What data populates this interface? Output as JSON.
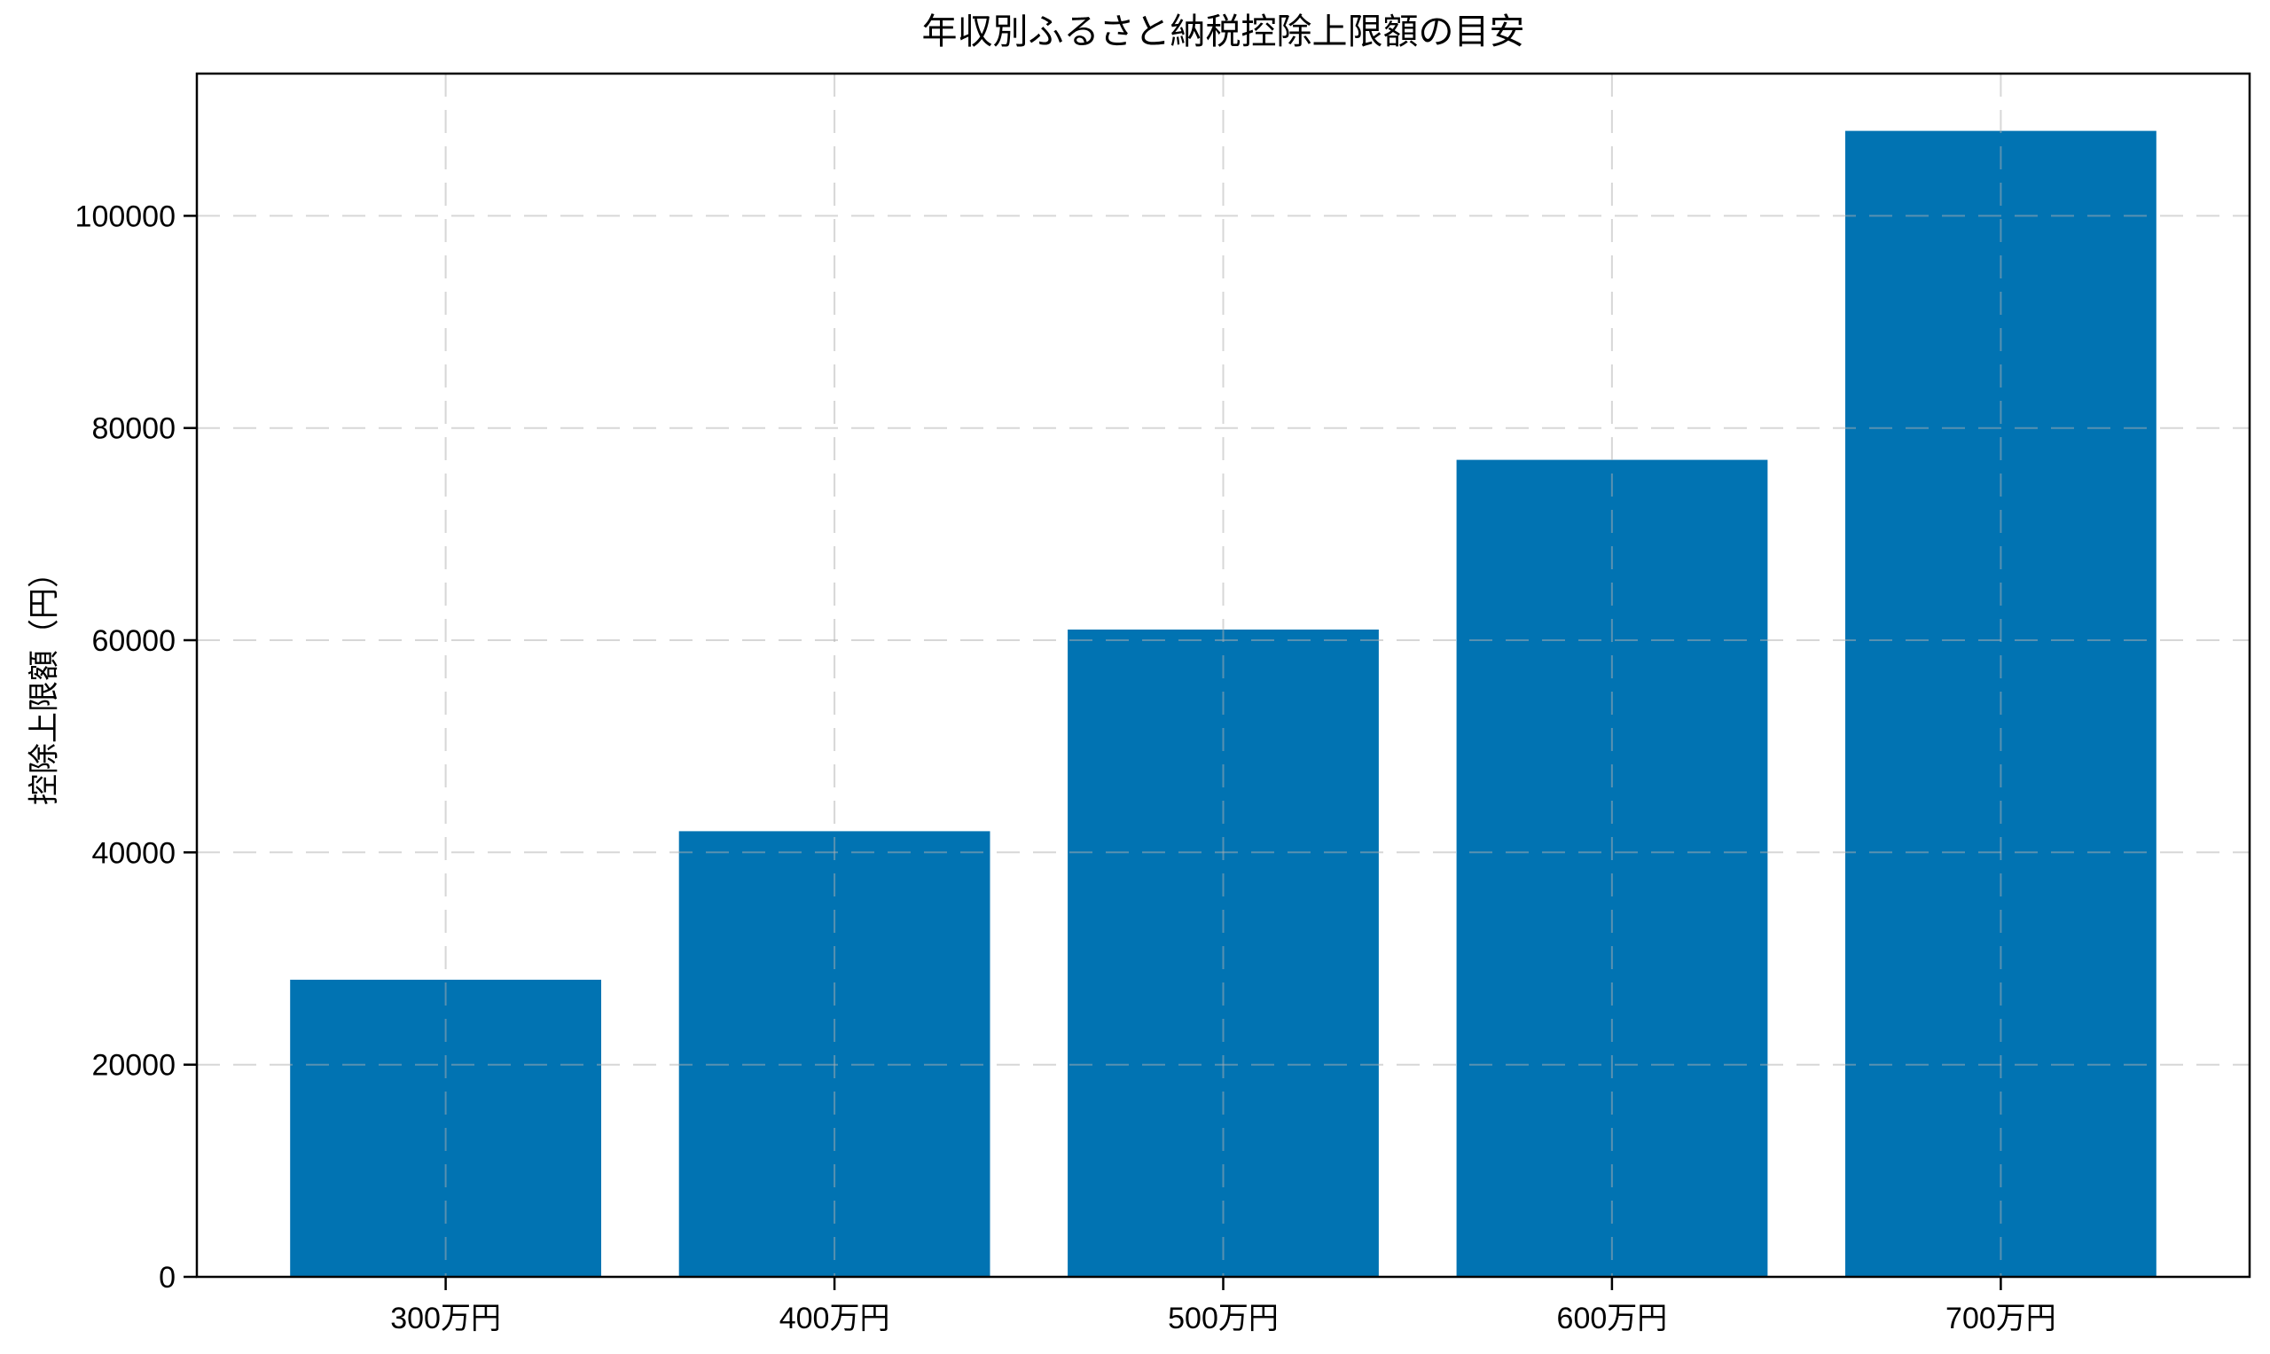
{
  "chart_data": {
    "type": "bar",
    "title": "年収別ふるさと納税控除上限額の目安",
    "categories": [
      "300万円",
      "400万円",
      "500万円",
      "600万円",
      "700万円"
    ],
    "values": [
      28000,
      42000,
      61000,
      77000,
      108000
    ],
    "xlabel": "",
    "ylabel": "控除上限額（円）",
    "ylim": [
      0,
      113400
    ],
    "yticks": [
      0,
      20000,
      40000,
      60000,
      80000,
      100000
    ],
    "grid": true,
    "grid_style": "dashed",
    "grid_over_bars": true,
    "legend": "none",
    "bar_color": "#0173b2",
    "grid_color": "#b0b0b0",
    "grid_alpha": 0.5,
    "axis_color": "#000000",
    "background": "#ffffff",
    "bar_width_fraction": 0.8
  }
}
